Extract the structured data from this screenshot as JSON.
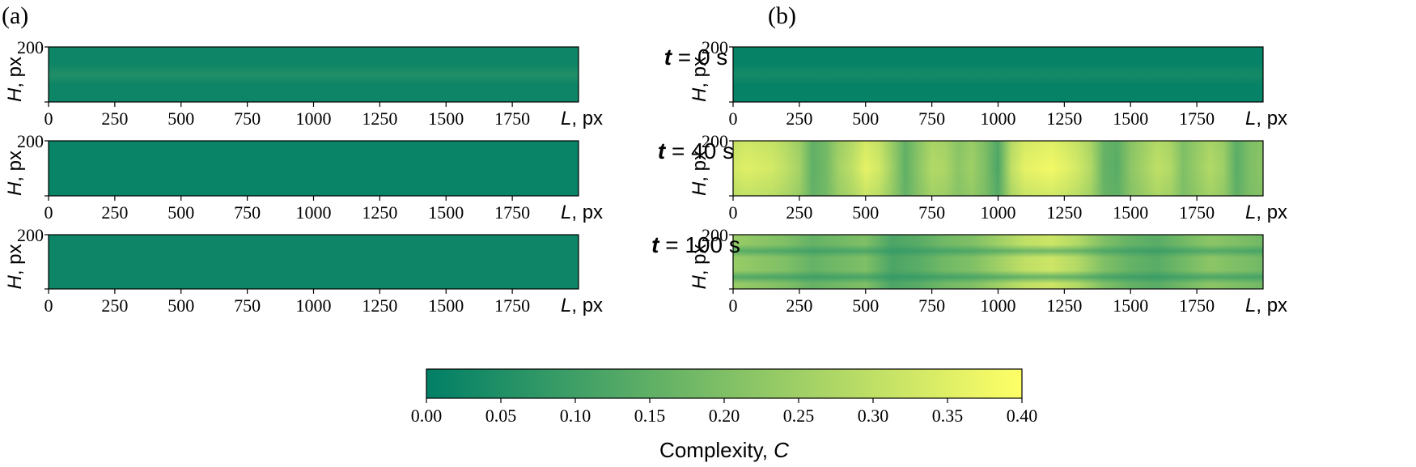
{
  "chart_data": {
    "type": "heatmap",
    "colormap": [
      "#007f66",
      "#3f9f66",
      "#7fbf66",
      "#bfdf66",
      "#ffff66"
    ],
    "colorbar": {
      "label_text": "Complexity, ",
      "label_var": "C",
      "range": [
        0.0,
        0.4
      ],
      "ticks": [
        "0.00",
        "0.05",
        "0.10",
        "0.15",
        "0.20",
        "0.25",
        "0.30",
        "0.35",
        "0.40"
      ]
    },
    "xaxis": {
      "var": "L",
      "unit": ", px",
      "range": [
        0,
        2000
      ],
      "ticks": [
        "0",
        "250",
        "500",
        "750",
        "1000",
        "1250",
        "1500",
        "1750"
      ]
    },
    "yaxis": {
      "var": "H",
      "unit": ", px",
      "range": [
        0,
        200
      ],
      "tick_label": "200"
    },
    "panel_labels": [
      "(a)",
      "(b)"
    ],
    "row_labels": [
      {
        "var": "t",
        "text": " = 0 s"
      },
      {
        "var": "t",
        "text": " = 40 s"
      },
      {
        "var": "t",
        "text": " = 100 s"
      }
    ],
    "heatmaps": [
      {
        "panel": "a",
        "time": "t = 0 s",
        "mode": "bands",
        "centers": [
          0.5
        ],
        "bandValue": 0.05,
        "baseValue": 0.02
      },
      {
        "panel": "a",
        "time": "t = 40 s",
        "mode": "uniform",
        "value": 0.015
      },
      {
        "panel": "a",
        "time": "t = 100 s",
        "mode": "uniform",
        "value": 0.02
      },
      {
        "panel": "b",
        "time": "t = 0 s",
        "mode": "bands",
        "centers": [
          0.5
        ],
        "bandValue": 0.035,
        "baseValue": 0.01
      },
      {
        "panel": "b",
        "time": "t = 40 s",
        "mode": "columns",
        "x": [
          0,
          50,
          100,
          150,
          200,
          250,
          300,
          350,
          400,
          450,
          500,
          550,
          600,
          650,
          700,
          750,
          800,
          850,
          900,
          950,
          1000,
          1050,
          1100,
          1150,
          1200,
          1250,
          1300,
          1350,
          1400,
          1450,
          1500,
          1550,
          1600,
          1650,
          1700,
          1750,
          1800,
          1850,
          1900,
          1950,
          2000
        ],
        "values": [
          0.33,
          0.35,
          0.34,
          0.33,
          0.3,
          0.26,
          0.15,
          0.18,
          0.26,
          0.3,
          0.36,
          0.33,
          0.25,
          0.15,
          0.22,
          0.28,
          0.27,
          0.22,
          0.25,
          0.2,
          0.12,
          0.3,
          0.36,
          0.37,
          0.38,
          0.36,
          0.33,
          0.28,
          0.16,
          0.14,
          0.22,
          0.26,
          0.3,
          0.28,
          0.2,
          0.24,
          0.28,
          0.25,
          0.14,
          0.2,
          0.22
        ]
      },
      {
        "panel": "b",
        "time": "t = 100 s",
        "mode": "mixed",
        "x": [
          0,
          100,
          200,
          300,
          400,
          500,
          600,
          700,
          800,
          900,
          1000,
          1100,
          1200,
          1300,
          1400,
          1500,
          1600,
          1700,
          1800,
          1900,
          2000
        ],
        "values": [
          0.24,
          0.22,
          0.2,
          0.16,
          0.18,
          0.2,
          0.12,
          0.14,
          0.18,
          0.2,
          0.25,
          0.3,
          0.32,
          0.28,
          0.2,
          0.16,
          0.14,
          0.18,
          0.22,
          0.2,
          0.18
        ],
        "darkBands": [
          0.3,
          0.78
        ]
      }
    ]
  }
}
